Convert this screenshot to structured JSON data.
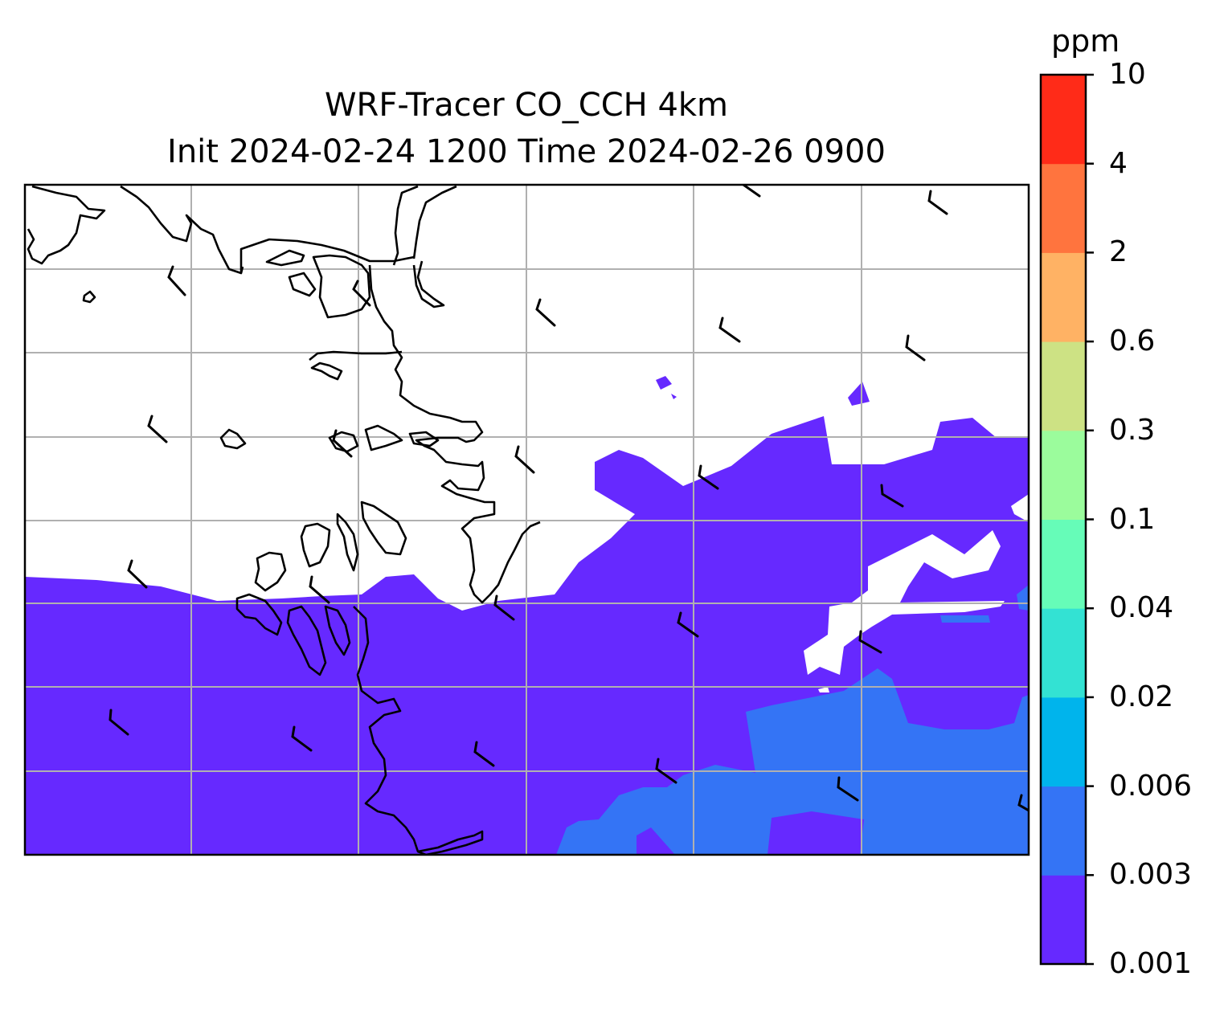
{
  "title": {
    "line1": "WRF-Tracer CO_CCH 4km",
    "line2": "Init 2024-02-24 1200 Time 2024-02-26 0900"
  },
  "colorbar": {
    "unit": "ppm",
    "levels": [
      "0.001",
      "0.003",
      "0.006",
      "0.02",
      "0.04",
      "0.1",
      "0.3",
      "0.6",
      "2",
      "4",
      "10"
    ],
    "colors": [
      "#6629ff",
      "#3474f5",
      "#00b4ec",
      "#33e2d3",
      "#66fcb8",
      "#9bfc9c",
      "#cde284",
      "#ffb264",
      "#ff743e",
      "#ff2b18"
    ]
  },
  "map": {
    "gridlines": true,
    "coastline_color": "#000000",
    "field": "CO_CCH tracer concentration",
    "wind_barbs": true
  }
}
